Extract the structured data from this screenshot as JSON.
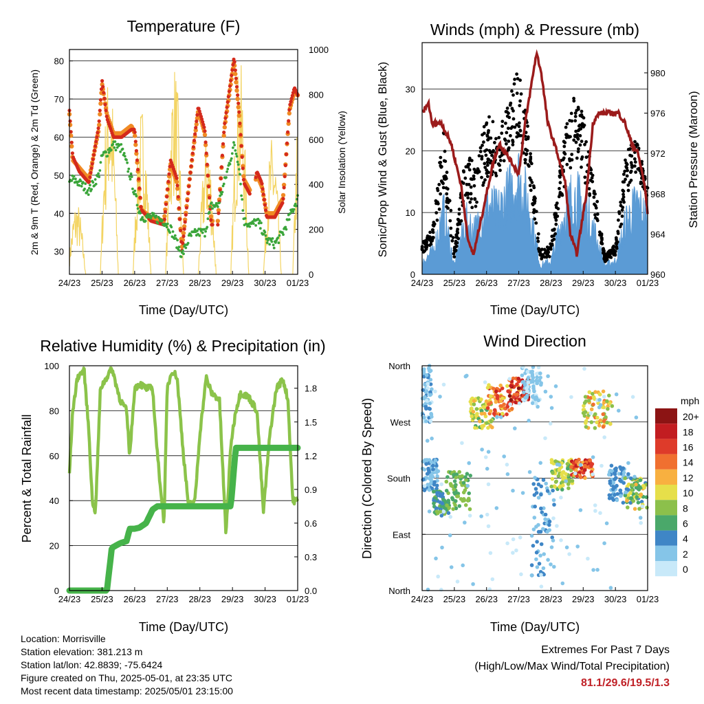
{
  "colors": {
    "temp_2m": "#d42a1c",
    "temp_9m": "#f08a24",
    "dewpoint": "#3aa53a",
    "solar": "#f3d463",
    "wind": "#5b9bd5",
    "gust": "#000000",
    "pressure": "#9b1b1b",
    "rh": "#8bc34a",
    "precip": "#46b34a"
  },
  "x_ticks": [
    "24/23",
    "25/23",
    "26/23",
    "27/23",
    "28/23",
    "29/23",
    "30/23",
    "01/23"
  ],
  "chart_data": [
    {
      "id": "temperature",
      "type": "line",
      "title": "Temperature (F)",
      "xlabel": "Time (Day/UTC)",
      "ylabel": "2m & 9m T (Red, Orange) & 2m Td (Green)",
      "y2label": "Solar Insolation (Yellow)",
      "ylim": [
        24,
        83
      ],
      "yticks": [
        30,
        40,
        50,
        60,
        70,
        80
      ],
      "y2lim": [
        0,
        1000
      ],
      "y2ticks": [
        0,
        200,
        400,
        600,
        800,
        1000
      ],
      "x": [
        0,
        0.1,
        0.3,
        0.6,
        0.9,
        1.0,
        1.15,
        1.35,
        1.6,
        1.9,
        2.0,
        2.2,
        2.5,
        2.9,
        3.1,
        3.3,
        3.45,
        3.7,
        3.95,
        4.15,
        4.35,
        4.55,
        4.75,
        5.05,
        5.2,
        5.35,
        5.6,
        5.75,
        5.9,
        6.05,
        6.3,
        6.55,
        6.75,
        6.9,
        7.0
      ],
      "series": [
        {
          "name": "2m T",
          "values": [
            67,
            55,
            51,
            48,
            63,
            75,
            65,
            60,
            60,
            62,
            62,
            41,
            38,
            37,
            54,
            49,
            30,
            50,
            68,
            62,
            37,
            37,
            63,
            81,
            67,
            48,
            44,
            51,
            48,
            39,
            39,
            43,
            68,
            73,
            71
          ]
        },
        {
          "name": "9m T",
          "values": [
            66,
            54,
            52,
            49,
            62,
            74,
            66,
            61,
            61,
            63,
            61,
            41,
            39,
            38,
            53,
            48,
            31,
            50,
            67,
            61,
            38,
            38,
            62,
            80,
            66,
            49,
            45,
            50,
            47,
            40,
            40,
            44,
            67,
            72,
            71
          ]
        },
        {
          "name": "2m Td",
          "values": [
            48,
            49,
            48,
            46,
            50,
            55,
            56,
            58,
            57,
            49,
            45,
            39,
            39,
            38,
            36,
            32,
            29,
            34,
            35,
            35,
            42,
            42,
            48,
            58,
            53,
            38,
            37,
            38,
            36,
            33,
            32,
            35,
            39,
            42,
            44
          ]
        }
      ],
      "solar": [
        {
          "day": 0,
          "peak": 330
        },
        {
          "day": 1,
          "peak": 920
        },
        {
          "day": 2,
          "peak": 760
        },
        {
          "day": 3,
          "peak": 950
        },
        {
          "day": 4,
          "peak": 620
        },
        {
          "day": 5,
          "peak": 960
        },
        {
          "day": 6,
          "peak": 620
        },
        {
          "day": 6.9,
          "peak": 990
        }
      ]
    },
    {
      "id": "winds",
      "type": "scatter",
      "title": "Winds (mph) & Pressure (mb)",
      "xlabel": "Time (Day/UTC)",
      "ylabel": "Sonic/Prop Wind & Gust (Blue, Black)",
      "y2label": "Station Pressure (Maroon)",
      "ylim": [
        0,
        37.5
      ],
      "yticks": [
        0,
        10,
        20,
        30
      ],
      "y2lim": [
        960,
        983
      ],
      "y2ticks": [
        960,
        964,
        968,
        972,
        976,
        980
      ],
      "wind_env": [
        3,
        5,
        14,
        2,
        12,
        10,
        16,
        14,
        18,
        22,
        15,
        2,
        3,
        12,
        18,
        16,
        10,
        2,
        3,
        12,
        16,
        12
      ],
      "gust_env": [
        5,
        8,
        24,
        4,
        20,
        18,
        26,
        24,
        28,
        34,
        22,
        4,
        5,
        20,
        30,
        26,
        16,
        3,
        5,
        20,
        22,
        14
      ],
      "pressure_x": [
        0,
        0.2,
        0.3,
        0.6,
        0.9,
        1.2,
        1.45,
        1.6,
        1.8,
        2.0,
        2.2,
        2.4,
        2.6,
        3.0,
        3.2,
        3.4,
        3.55,
        3.7,
        3.9,
        4.2,
        4.45,
        4.6,
        4.8,
        5.1,
        5.3,
        5.5,
        5.8,
        6.1,
        6.3,
        6.5,
        6.7,
        6.9,
        7.0
      ],
      "pressure": [
        976,
        977,
        975,
        975,
        973,
        969,
        963,
        962,
        965,
        968,
        971,
        973,
        972,
        970,
        975,
        979,
        982,
        980,
        975,
        972,
        969,
        964,
        962,
        968,
        975,
        976,
        976,
        976,
        975,
        973,
        972,
        969,
        966
      ]
    },
    {
      "id": "humidity",
      "type": "line",
      "title": "Relative Humidity (%) & Precipitation (in)",
      "xlabel": "Time (Day/UTC)",
      "ylabel": "Percent & Total Rainfall",
      "ylim": [
        0,
        100
      ],
      "yticks": [
        0,
        20,
        40,
        60,
        80,
        100
      ],
      "y2lim": [
        0,
        2.0
      ],
      "y2ticks": [
        "0.0",
        "0.3",
        "0.6",
        "0.9",
        "1.2",
        "1.5",
        "1.8"
      ],
      "x": [
        0,
        0.1,
        0.25,
        0.45,
        0.6,
        0.7,
        0.8,
        0.95,
        1.15,
        1.3,
        1.55,
        1.75,
        1.85,
        2.0,
        2.15,
        2.35,
        2.55,
        2.7,
        2.9,
        3.0,
        3.15,
        3.3,
        3.5,
        3.65,
        3.85,
        4.0,
        4.2,
        4.35,
        4.6,
        4.8,
        4.95,
        5.1,
        5.25,
        5.5,
        5.75,
        5.95,
        6.15,
        6.35,
        6.55,
        6.7,
        6.85,
        7.0
      ],
      "series": [
        {
          "name": "RH",
          "values": [
            52,
            80,
            95,
            98,
            70,
            40,
            35,
            90,
            95,
            99,
            85,
            80,
            60,
            90,
            92,
            90,
            90,
            60,
            30,
            90,
            98,
            95,
            60,
            38,
            40,
            70,
            95,
            88,
            85,
            25,
            65,
            80,
            88,
            86,
            80,
            35,
            70,
            90,
            94,
            85,
            40,
            40
          ]
        },
        {
          "name": "Precipitation",
          "values": [
            0,
            0,
            0,
            0,
            0,
            0,
            0,
            0,
            0,
            0.38,
            0.42,
            0.44,
            0.55,
            0.55,
            0.56,
            0.6,
            0.72,
            0.75,
            0.75,
            0.75,
            0.75,
            0.75,
            0.75,
            0.75,
            0.75,
            0.75,
            0.75,
            0.75,
            0.75,
            0.75,
            0.75,
            1.27,
            1.27,
            1.27,
            1.27,
            1.27,
            1.27,
            1.27,
            1.27,
            1.27,
            1.27,
            1.27
          ]
        }
      ]
    },
    {
      "id": "direction",
      "type": "scatter",
      "title": "Wind Direction",
      "xlabel": "Time (Day/UTC)",
      "ylabel": "Direction (Colored By Speed)",
      "yticks": [
        "North",
        "East",
        "South",
        "West",
        "North"
      ],
      "ylim": [
        0,
        360
      ],
      "legend_title": "mph",
      "legend_labels": [
        "0",
        "2",
        "4",
        "6",
        "8",
        "10",
        "12",
        "14",
        "16",
        "18",
        "20+"
      ],
      "legend_colors": [
        "#c8e9f9",
        "#85c5e8",
        "#3f86c6",
        "#4aa86a",
        "#8cc04b",
        "#e6df4a",
        "#f8b040",
        "#f07030",
        "#de3b2a",
        "#c21d21",
        "#8c1414"
      ],
      "clusters": [
        {
          "x": [
            0,
            0.3
          ],
          "dir": [
            270,
            360
          ],
          "spd": [
            0,
            4
          ]
        },
        {
          "x": [
            0,
            0.5
          ],
          "dir": [
            160,
            210
          ],
          "spd": [
            1,
            4
          ]
        },
        {
          "x": [
            0.35,
            0.85
          ],
          "dir": [
            120,
            160
          ],
          "spd": [
            3,
            8
          ]
        },
        {
          "x": [
            0.75,
            1.5
          ],
          "dir": [
            130,
            190
          ],
          "spd": [
            5,
            9
          ]
        },
        {
          "x": [
            1.5,
            2.2
          ],
          "dir": [
            260,
            310
          ],
          "spd": [
            6,
            12
          ]
        },
        {
          "x": [
            2.0,
            2.8
          ],
          "dir": [
            280,
            330
          ],
          "spd": [
            9,
            18
          ]
        },
        {
          "x": [
            2.7,
            3.3
          ],
          "dir": [
            300,
            340
          ],
          "spd": [
            12,
            20
          ]
        },
        {
          "x": [
            3.1,
            3.7
          ],
          "dir": [
            300,
            360
          ],
          "spd": [
            0,
            3
          ]
        },
        {
          "x": [
            3.4,
            4.1
          ],
          "dir": [
            20,
            180
          ],
          "spd": [
            1,
            5
          ]
        },
        {
          "x": [
            4.0,
            4.7
          ],
          "dir": [
            160,
            210
          ],
          "spd": [
            6,
            11
          ]
        },
        {
          "x": [
            4.6,
            5.3
          ],
          "dir": [
            180,
            210
          ],
          "spd": [
            11,
            19
          ]
        },
        {
          "x": [
            5.0,
            5.9
          ],
          "dir": [
            260,
            320
          ],
          "spd": [
            7,
            14
          ]
        },
        {
          "x": [
            5.8,
            6.4
          ],
          "dir": [
            140,
            200
          ],
          "spd": [
            1,
            5
          ]
        },
        {
          "x": [
            6.3,
            7.0
          ],
          "dir": [
            130,
            180
          ],
          "spd": [
            4,
            12
          ]
        },
        {
          "x": [
            0,
            7.0
          ],
          "dir": [
            0,
            360
          ],
          "spd": [
            0,
            2
          ]
        }
      ]
    }
  ],
  "info": {
    "location": "Location: Morrisville",
    "elevation": "Station elevation: 381.213 m",
    "latlon": "Station lat/lon: 42.8839; -75.6424",
    "created": "Figure created on Thu, 2025-05-01, at 23:35 UTC",
    "timestamp": "Most recent data timestamp: 2025/05/01 23:15:00"
  },
  "extremes": {
    "title": "Extremes For Past 7 Days",
    "subtitle": "(High/Low/Max Wind/Total Precipitation)",
    "values": "81.1/29.6/19.5/1.3"
  }
}
